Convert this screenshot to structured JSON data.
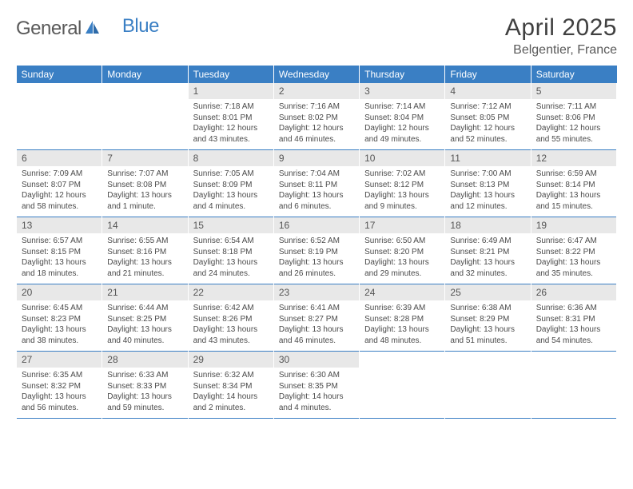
{
  "logo": {
    "text1": "General",
    "text2": "Blue"
  },
  "title": "April 2025",
  "location": "Belgentier, France",
  "colors": {
    "header_bg": "#3a7fc4",
    "header_text": "#ffffff",
    "daynum_bg": "#e8e8e8",
    "text": "#4a4a4a",
    "border": "#3a7fc4"
  },
  "weekdays": [
    "Sunday",
    "Monday",
    "Tuesday",
    "Wednesday",
    "Thursday",
    "Friday",
    "Saturday"
  ],
  "weeks": [
    [
      null,
      null,
      {
        "n": "1",
        "sr": "7:18 AM",
        "ss": "8:01 PM",
        "dl": "12 hours and 43 minutes."
      },
      {
        "n": "2",
        "sr": "7:16 AM",
        "ss": "8:02 PM",
        "dl": "12 hours and 46 minutes."
      },
      {
        "n": "3",
        "sr": "7:14 AM",
        "ss": "8:04 PM",
        "dl": "12 hours and 49 minutes."
      },
      {
        "n": "4",
        "sr": "7:12 AM",
        "ss": "8:05 PM",
        "dl": "12 hours and 52 minutes."
      },
      {
        "n": "5",
        "sr": "7:11 AM",
        "ss": "8:06 PM",
        "dl": "12 hours and 55 minutes."
      }
    ],
    [
      {
        "n": "6",
        "sr": "7:09 AM",
        "ss": "8:07 PM",
        "dl": "12 hours and 58 minutes."
      },
      {
        "n": "7",
        "sr": "7:07 AM",
        "ss": "8:08 PM",
        "dl": "13 hours and 1 minute."
      },
      {
        "n": "8",
        "sr": "7:05 AM",
        "ss": "8:09 PM",
        "dl": "13 hours and 4 minutes."
      },
      {
        "n": "9",
        "sr": "7:04 AM",
        "ss": "8:11 PM",
        "dl": "13 hours and 6 minutes."
      },
      {
        "n": "10",
        "sr": "7:02 AM",
        "ss": "8:12 PM",
        "dl": "13 hours and 9 minutes."
      },
      {
        "n": "11",
        "sr": "7:00 AM",
        "ss": "8:13 PM",
        "dl": "13 hours and 12 minutes."
      },
      {
        "n": "12",
        "sr": "6:59 AM",
        "ss": "8:14 PM",
        "dl": "13 hours and 15 minutes."
      }
    ],
    [
      {
        "n": "13",
        "sr": "6:57 AM",
        "ss": "8:15 PM",
        "dl": "13 hours and 18 minutes."
      },
      {
        "n": "14",
        "sr": "6:55 AM",
        "ss": "8:16 PM",
        "dl": "13 hours and 21 minutes."
      },
      {
        "n": "15",
        "sr": "6:54 AM",
        "ss": "8:18 PM",
        "dl": "13 hours and 24 minutes."
      },
      {
        "n": "16",
        "sr": "6:52 AM",
        "ss": "8:19 PM",
        "dl": "13 hours and 26 minutes."
      },
      {
        "n": "17",
        "sr": "6:50 AM",
        "ss": "8:20 PM",
        "dl": "13 hours and 29 minutes."
      },
      {
        "n": "18",
        "sr": "6:49 AM",
        "ss": "8:21 PM",
        "dl": "13 hours and 32 minutes."
      },
      {
        "n": "19",
        "sr": "6:47 AM",
        "ss": "8:22 PM",
        "dl": "13 hours and 35 minutes."
      }
    ],
    [
      {
        "n": "20",
        "sr": "6:45 AM",
        "ss": "8:23 PM",
        "dl": "13 hours and 38 minutes."
      },
      {
        "n": "21",
        "sr": "6:44 AM",
        "ss": "8:25 PM",
        "dl": "13 hours and 40 minutes."
      },
      {
        "n": "22",
        "sr": "6:42 AM",
        "ss": "8:26 PM",
        "dl": "13 hours and 43 minutes."
      },
      {
        "n": "23",
        "sr": "6:41 AM",
        "ss": "8:27 PM",
        "dl": "13 hours and 46 minutes."
      },
      {
        "n": "24",
        "sr": "6:39 AM",
        "ss": "8:28 PM",
        "dl": "13 hours and 48 minutes."
      },
      {
        "n": "25",
        "sr": "6:38 AM",
        "ss": "8:29 PM",
        "dl": "13 hours and 51 minutes."
      },
      {
        "n": "26",
        "sr": "6:36 AM",
        "ss": "8:31 PM",
        "dl": "13 hours and 54 minutes."
      }
    ],
    [
      {
        "n": "27",
        "sr": "6:35 AM",
        "ss": "8:32 PM",
        "dl": "13 hours and 56 minutes."
      },
      {
        "n": "28",
        "sr": "6:33 AM",
        "ss": "8:33 PM",
        "dl": "13 hours and 59 minutes."
      },
      {
        "n": "29",
        "sr": "6:32 AM",
        "ss": "8:34 PM",
        "dl": "14 hours and 2 minutes."
      },
      {
        "n": "30",
        "sr": "6:30 AM",
        "ss": "8:35 PM",
        "dl": "14 hours and 4 minutes."
      },
      null,
      null,
      null
    ]
  ]
}
